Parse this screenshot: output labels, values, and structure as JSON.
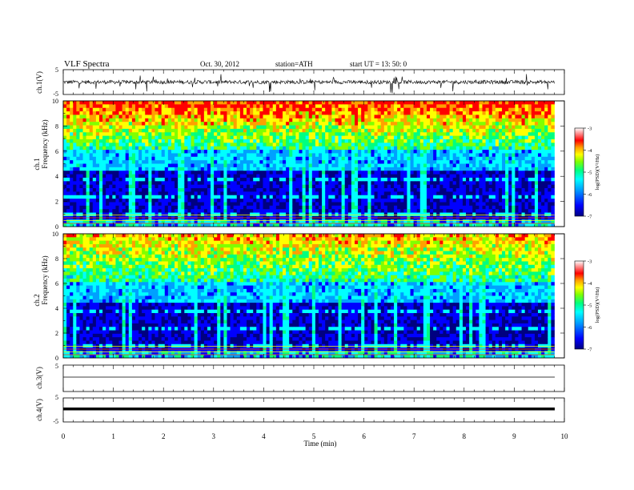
{
  "header": {
    "title": "VLF  Spectra",
    "date": "Oct. 30, 2012",
    "station": "station=ATH",
    "start": "start  UT  =    13: 50: 0"
  },
  "colorbar": {
    "label": "log(PSD)(V²/Hz)",
    "ticks": [
      "-3",
      "-4",
      "-5",
      "-6",
      "-7"
    ],
    "colors": [
      "#000080",
      "#0000ff",
      "#00a0ff",
      "#00ffff",
      "#00ff80",
      "#80ff00",
      "#ffff00",
      "#ffa000",
      "#ff0000",
      "#ffffff"
    ]
  },
  "chart_data": [
    {
      "type": "line",
      "name": "ch1-waveform",
      "ylabel": "ch.1(V)",
      "ylim": [
        -5,
        5
      ],
      "y_ticks": [
        "5",
        "-5"
      ],
      "baseline": 0,
      "amplitude_typical": 1.5,
      "color": "#000000"
    },
    {
      "type": "heatmap",
      "name": "ch1-spectrogram",
      "ylabel_channel": "ch.1",
      "ylabel": "Frequency  (kHz)",
      "ylim": [
        0,
        10
      ],
      "y_ticks": [
        "0",
        "2",
        "4",
        "6",
        "8",
        "10"
      ],
      "xlim": [
        0,
        10
      ],
      "colormap_range": [
        -7,
        -3
      ]
    },
    {
      "type": "heatmap",
      "name": "ch2-spectrogram",
      "ylabel_channel": "ch.2",
      "ylabel": "Frequency  (kHz)",
      "ylim": [
        0,
        10
      ],
      "y_ticks": [
        "0",
        "2",
        "4",
        "6",
        "8",
        "10"
      ],
      "xlim": [
        0,
        10
      ],
      "colormap_range": [
        -7,
        -3
      ]
    },
    {
      "type": "line",
      "name": "ch3-waveform",
      "ylabel": "ch.3(V)",
      "ylim": [
        -5,
        5
      ],
      "y_ticks": [
        "5"
      ],
      "baseline": 0,
      "color": "#000000"
    },
    {
      "type": "line",
      "name": "ch4-waveform",
      "ylabel": "ch.4(V)",
      "ylim": [
        -5,
        5
      ],
      "y_ticks": [
        "5",
        "-5"
      ],
      "baseline": 0,
      "color": "#000000"
    }
  ],
  "xaxis": {
    "label": "Time  (min)",
    "ticks": [
      "0",
      "1",
      "2",
      "3",
      "4",
      "5",
      "6",
      "7",
      "8",
      "9",
      "10"
    ],
    "data_end_min": 9.8
  }
}
